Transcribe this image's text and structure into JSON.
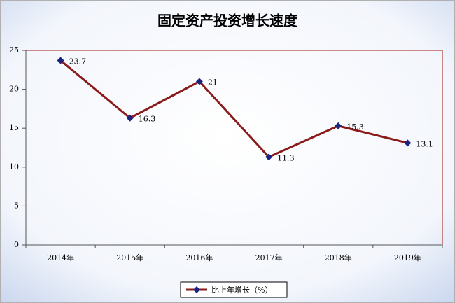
{
  "chart_data": {
    "type": "line",
    "title": "固定资产投资增长速度",
    "categories": [
      "2014年",
      "2015年",
      "2016年",
      "2017年",
      "2018年",
      "2019年"
    ],
    "series": [
      {
        "name": "比上年增长（%）",
        "color": "#8b1a1a",
        "marker_color": "#1a237e",
        "values": [
          23.7,
          16.3,
          21,
          11.3,
          15.3,
          13.1
        ]
      }
    ],
    "ylim": [
      0,
      25
    ],
    "yticks": [
      0,
      5,
      10,
      15,
      20,
      25
    ],
    "grid": false,
    "legend": "bottom"
  }
}
